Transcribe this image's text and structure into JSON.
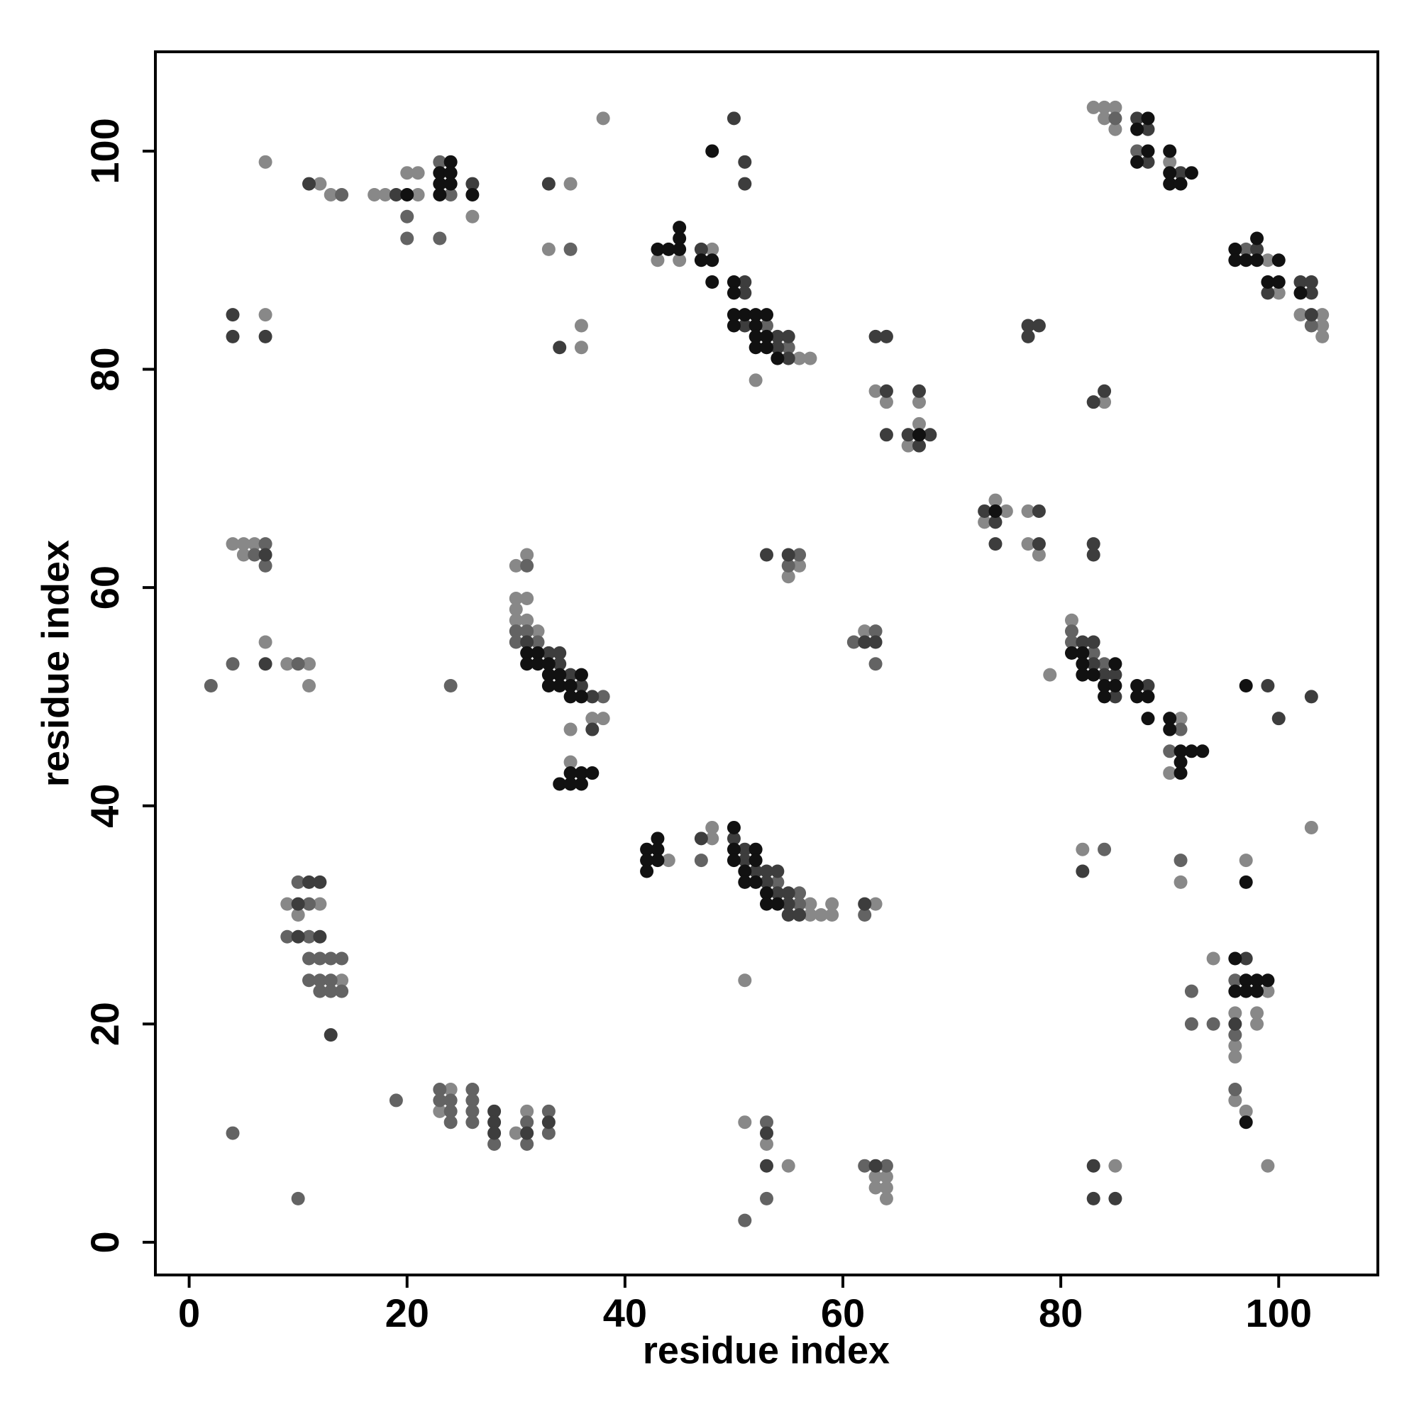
{
  "chart_data": {
    "type": "scatter",
    "xlabel": "residue index",
    "ylabel": "residue index",
    "xlim": [
      -3.1,
      109.1
    ],
    "ylim": [
      -3,
      109.1
    ],
    "xticks": [
      0,
      20,
      40,
      60,
      80,
      100
    ],
    "yticks": [
      0,
      20,
      40,
      60,
      80,
      100
    ],
    "series": [
      {
        "color": "#888888",
        "x": [
          7,
          12,
          13,
          17,
          18,
          21,
          20,
          21,
          26,
          35,
          33,
          38,
          36,
          36,
          7,
          43,
          45,
          48,
          56,
          57,
          52,
          63,
          64,
          67,
          66,
          67,
          75,
          73,
          74,
          77,
          77,
          78,
          84,
          83,
          84,
          85,
          84,
          85,
          90,
          99,
          100,
          102,
          104,
          104,
          104,
          4,
          5,
          6,
          5,
          7,
          9,
          11,
          11,
          31,
          30,
          30,
          31,
          30,
          30,
          31,
          32,
          37,
          38,
          35,
          35,
          62,
          56,
          55,
          81,
          91,
          90,
          79,
          103,
          44,
          48,
          48,
          57,
          59,
          57,
          58,
          59,
          63,
          51,
          9,
          12,
          10,
          14,
          24,
          23,
          30,
          31,
          51,
          53,
          55,
          63,
          64,
          63,
          64,
          64,
          85,
          82,
          91,
          97,
          94,
          99,
          96,
          98,
          98,
          96,
          96,
          96,
          97,
          99
        ],
        "y": [
          99,
          97,
          96,
          96,
          96,
          96,
          98,
          98,
          94,
          97,
          91,
          103,
          84,
          82,
          85,
          90,
          90,
          91,
          81,
          81,
          79,
          78,
          77,
          77,
          73,
          75,
          67,
          66,
          68,
          67,
          64,
          63,
          77,
          104,
          104,
          104,
          103,
          102,
          99,
          90,
          87,
          85,
          85,
          84,
          83,
          64,
          64,
          64,
          63,
          55,
          53,
          53,
          51,
          63,
          62,
          59,
          59,
          58,
          57,
          57,
          56,
          48,
          48,
          47,
          44,
          56,
          62,
          61,
          57,
          48,
          43,
          52,
          38,
          35,
          37,
          38,
          31,
          31,
          30,
          30,
          30,
          31,
          24,
          31,
          31,
          30,
          24,
          14,
          12,
          10,
          12,
          11,
          9,
          7,
          6,
          6,
          5,
          5,
          4,
          7,
          36,
          33,
          35,
          26,
          23,
          21,
          21,
          20,
          18,
          17,
          13,
          12,
          7
        ]
      },
      {
        "color": "#636363",
        "x": [
          14,
          20,
          20,
          23,
          24,
          23,
          35,
          53,
          55,
          85,
          87,
          97,
          103,
          7,
          6,
          7,
          4,
          10,
          2,
          24,
          31,
          30,
          31,
          30,
          32,
          38,
          61,
          63,
          63,
          56,
          55,
          81,
          81,
          83,
          84,
          91,
          90,
          47,
          54,
          56,
          56,
          62,
          11,
          10,
          9,
          11,
          11,
          12,
          13,
          14,
          11,
          12,
          13,
          12,
          13,
          14,
          19,
          23,
          23,
          24,
          24,
          24,
          26,
          26,
          26,
          26,
          28,
          31,
          31,
          33,
          33,
          4,
          10,
          53,
          53,
          51,
          62,
          64,
          84,
          91,
          92,
          92,
          94,
          96,
          96,
          96
        ],
        "y": [
          96,
          94,
          92,
          99,
          96,
          92,
          91,
          84,
          82,
          103,
          100,
          91,
          84,
          64,
          63,
          62,
          53,
          53,
          51,
          51,
          62,
          56,
          56,
          55,
          55,
          50,
          55,
          56,
          53,
          63,
          62,
          56,
          55,
          54,
          53,
          47,
          45,
          35,
          33,
          32,
          31,
          30,
          31,
          33,
          28,
          28,
          26,
          26,
          26,
          26,
          24,
          24,
          24,
          23,
          23,
          23,
          13,
          14,
          13,
          13,
          12,
          11,
          14,
          13,
          12,
          11,
          9,
          11,
          9,
          12,
          10,
          10,
          4,
          11,
          4,
          2,
          7,
          7,
          36,
          35,
          23,
          20,
          20,
          24,
          19,
          14
        ]
      },
      {
        "color": "#3d3d3d",
        "x": [
          11,
          19,
          26,
          33,
          34,
          4,
          4,
          7,
          47,
          50,
          51,
          51,
          51,
          51,
          51,
          54,
          55,
          54,
          55,
          63,
          64,
          64,
          64,
          67,
          66,
          68,
          67,
          73,
          74,
          74,
          78,
          78,
          77,
          78,
          77,
          83,
          84,
          83,
          83,
          87,
          88,
          88,
          91,
          98,
          99,
          102,
          103,
          103,
          103,
          7,
          7,
          31,
          33,
          34,
          34,
          35,
          36,
          37,
          37,
          62,
          63,
          53,
          55,
          82,
          83,
          83,
          84,
          85,
          85,
          88,
          99,
          100,
          103,
          47,
          50,
          51,
          51,
          52,
          53,
          54,
          53,
          54,
          55,
          55,
          55,
          56,
          62,
          10,
          11,
          12,
          10,
          12,
          13,
          28,
          28,
          28,
          31,
          33,
          53,
          53,
          63,
          83,
          83,
          85,
          82,
          97,
          96
        ],
        "y": [
          97,
          96,
          97,
          97,
          82,
          85,
          83,
          83,
          91,
          103,
          99,
          97,
          88,
          87,
          84,
          83,
          83,
          82,
          81,
          83,
          83,
          78,
          74,
          78,
          74,
          74,
          73,
          67,
          66,
          64,
          67,
          64,
          84,
          84,
          83,
          77,
          78,
          64,
          63,
          103,
          102,
          99,
          98,
          91,
          87,
          88,
          88,
          87,
          85,
          63,
          53,
          55,
          54,
          54,
          53,
          52,
          51,
          50,
          47,
          55,
          55,
          63,
          63,
          55,
          55,
          53,
          52,
          52,
          50,
          51,
          51,
          48,
          50,
          37,
          37,
          36,
          35,
          34,
          34,
          34,
          33,
          32,
          32,
          31,
          30,
          30,
          31,
          31,
          33,
          33,
          28,
          28,
          19,
          12,
          11,
          10,
          10,
          11,
          10,
          7,
          7,
          7,
          4,
          4,
          34,
          26,
          20
        ]
      },
      {
        "color": "#111111",
        "x": [
          20,
          24,
          23,
          24,
          23,
          24,
          23,
          26,
          43,
          44,
          45,
          45,
          45,
          47,
          48,
          48,
          48,
          50,
          50,
          50,
          51,
          52,
          53,
          50,
          52,
          52,
          53,
          52,
          53,
          54,
          67,
          74,
          88,
          87,
          88,
          87,
          90,
          90,
          92,
          90,
          91,
          96,
          98,
          96,
          97,
          98,
          100,
          99,
          100,
          102,
          31,
          32,
          31,
          32,
          33,
          33,
          34,
          36,
          33,
          34,
          35,
          35,
          36,
          34,
          35,
          36,
          35,
          36,
          37,
          81,
          82,
          82,
          85,
          82,
          83,
          84,
          85,
          84,
          87,
          87,
          88,
          88,
          90,
          90,
          91,
          92,
          93,
          91,
          91,
          97,
          43,
          42,
          43,
          42,
          43,
          42,
          50,
          50,
          52,
          50,
          52,
          51,
          51,
          52,
          53,
          53,
          54,
          97,
          96,
          97,
          98,
          99,
          96,
          97,
          98,
          97
        ],
        "y": [
          96,
          99,
          98,
          98,
          97,
          97,
          96,
          96,
          91,
          91,
          91,
          92,
          93,
          90,
          90,
          88,
          100,
          88,
          87,
          85,
          85,
          85,
          85,
          84,
          84,
          83,
          83,
          82,
          82,
          81,
          74,
          67,
          103,
          102,
          100,
          99,
          100,
          98,
          98,
          97,
          97,
          91,
          92,
          90,
          90,
          90,
          90,
          88,
          88,
          87,
          54,
          54,
          53,
          53,
          53,
          52,
          52,
          52,
          51,
          51,
          51,
          50,
          50,
          42,
          42,
          42,
          43,
          43,
          43,
          54,
          54,
          53,
          53,
          52,
          52,
          51,
          51,
          50,
          51,
          50,
          50,
          48,
          48,
          47,
          45,
          45,
          45,
          44,
          43,
          51,
          37,
          36,
          36,
          35,
          35,
          34,
          38,
          36,
          36,
          35,
          35,
          34,
          33,
          33,
          32,
          31,
          31,
          33,
          26,
          24,
          24,
          24,
          23,
          23,
          23,
          11
        ]
      }
    ]
  }
}
